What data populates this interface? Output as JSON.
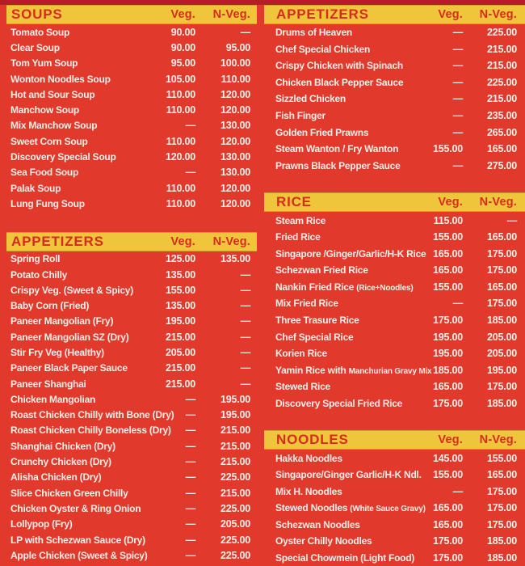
{
  "colors": {
    "background_red": "#e13a2c",
    "top_strip_red": "#b22023",
    "band_yellow": "#efc63b",
    "band_text_red": "#da2a20",
    "item_text": "#ffeee8"
  },
  "columns": [
    {
      "sections": [
        {
          "title": "SOUPS",
          "veg_label": "Veg.",
          "nveg_label": "N-Veg.",
          "items": [
            {
              "name": "Tomato Soup",
              "veg": "90.00",
              "nveg": "—"
            },
            {
              "name": "Clear Soup",
              "veg": "90.00",
              "nveg": "95.00"
            },
            {
              "name": "Tom Yum Soup",
              "veg": "95.00",
              "nveg": "100.00"
            },
            {
              "name": "Wonton Noodles Soup",
              "veg": "105.00",
              "nveg": "110.00"
            },
            {
              "name": "Hot and Sour Soup",
              "veg": "110.00",
              "nveg": "120.00"
            },
            {
              "name": "Manchow Soup",
              "veg": "110.00",
              "nveg": "120.00"
            },
            {
              "name": "Mix Manchow Soup",
              "veg": "—",
              "nveg": "130.00"
            },
            {
              "name": "Sweet Corn Soup",
              "veg": "110.00",
              "nveg": "120.00"
            },
            {
              "name": "Discovery Special Soup",
              "veg": "120.00",
              "nveg": "130.00"
            },
            {
              "name": "Sea Food Soup",
              "veg": "—",
              "nveg": "130.00"
            },
            {
              "name": "Palak Soup",
              "veg": "110.00",
              "nveg": "120.00"
            },
            {
              "name": "Lung Fung Soup",
              "veg": "110.00",
              "nveg": "120.00"
            }
          ]
        },
        {
          "title": "APPETIZERS",
          "veg_label": "Veg.",
          "nveg_label": "N-Veg.",
          "items": [
            {
              "name": "Spring Roll",
              "veg": "125.00",
              "nveg": "135.00"
            },
            {
              "name": "Potato Chilly",
              "veg": "135.00",
              "nveg": "—"
            },
            {
              "name": "Crispy Veg. (Sweet & Spicy)",
              "veg": "155.00",
              "nveg": "—"
            },
            {
              "name": "Baby Corn (Fried)",
              "veg": "135.00",
              "nveg": "—"
            },
            {
              "name": "Paneer Mangolian (Fry)",
              "veg": "195.00",
              "nveg": "—"
            },
            {
              "name": "Paneer Mangolian SZ (Dry)",
              "veg": "215.00",
              "nveg": "—"
            },
            {
              "name": "Stir Fry Veg (Healthy)",
              "veg": "205.00",
              "nveg": "—"
            },
            {
              "name": "Paneer Black Paper Sauce",
              "veg": "215.00",
              "nveg": "—"
            },
            {
              "name": "Paneer Shanghai",
              "veg": "215.00",
              "nveg": "—"
            },
            {
              "name": "Chicken Mangolian",
              "veg": "—",
              "nveg": "195.00"
            },
            {
              "name": "Roast Chicken Chilly with Bone (Dry)",
              "veg": "—",
              "nveg": "195.00"
            },
            {
              "name": "Roast Chicken Chilly Boneless (Dry)",
              "veg": "—",
              "nveg": "215.00"
            },
            {
              "name": "Shanghai Chicken (Dry)",
              "veg": "—",
              "nveg": "215.00"
            },
            {
              "name": "Crunchy Chicken (Dry)",
              "veg": "—",
              "nveg": "215.00"
            },
            {
              "name": "Alisha Chicken (Dry)",
              "veg": "—",
              "nveg": "225.00"
            },
            {
              "name": "Slice Chicken Green Chilly",
              "veg": "—",
              "nveg": "215.00"
            },
            {
              "name": "Chicken Oyster & Ring Onion",
              "veg": "—",
              "nveg": "225.00"
            },
            {
              "name": "Lollypop (Fry)",
              "veg": "—",
              "nveg": "205.00"
            },
            {
              "name": "LP with Schezwan Sauce (Dry)",
              "veg": "—",
              "nveg": "225.00"
            },
            {
              "name": "Apple Chicken (Sweet & Spicy)",
              "veg": "—",
              "nveg": "225.00"
            }
          ]
        }
      ]
    },
    {
      "sections": [
        {
          "title": "APPETIZERS",
          "veg_label": "Veg.",
          "nveg_label": "N-Veg.",
          "items": [
            {
              "name": "Drums of Heaven",
              "veg": "—",
              "nveg": "225.00"
            },
            {
              "name": "Chef Special Chicken",
              "veg": "—",
              "nveg": "215.00"
            },
            {
              "name": "Crispy Chicken with Spinach",
              "veg": "—",
              "nveg": "215.00"
            },
            {
              "name": "Chicken Black Pepper Sauce",
              "veg": "—",
              "nveg": "225.00"
            },
            {
              "name": "Sizzled Chicken",
              "veg": "—",
              "nveg": "215.00"
            },
            {
              "name": "Fish Finger",
              "veg": "—",
              "nveg": "235.00"
            },
            {
              "name": "Golden Fried Prawns",
              "veg": "—",
              "nveg": "265.00"
            },
            {
              "name": "Steam Wanton / Fry Wanton",
              "veg": "155.00",
              "nveg": "165.00"
            },
            {
              "name": "Prawns Black Pepper Sauce",
              "veg": "—",
              "nveg": "275.00"
            }
          ]
        },
        {
          "title": "RICE",
          "veg_label": "Veg.",
          "nveg_label": "N-Veg.",
          "items": [
            {
              "name": "Steam Rice",
              "veg": "115.00",
              "nveg": "—"
            },
            {
              "name": "Fried Rice",
              "veg": "155.00",
              "nveg": "165.00"
            },
            {
              "name": "Singapore /Ginger/Garlic/H-K Rice",
              "veg": "165.00",
              "nveg": "175.00"
            },
            {
              "name": "Schezwan Fried Rice",
              "veg": "165.00",
              "nveg": "175.00"
            },
            {
              "name": "Nankin Fried Rice",
              "name_small": "(Rice+Noodles)",
              "veg": "155.00",
              "nveg": "165.00"
            },
            {
              "name": "Mix Fried Rice",
              "veg": "—",
              "nveg": "175.00"
            },
            {
              "name": "Three Trasure Rice",
              "veg": "175.00",
              "nveg": "185.00"
            },
            {
              "name": "Chef Special Rice",
              "veg": "195.00",
              "nveg": "205.00"
            },
            {
              "name": "Korien Rice",
              "veg": "195.00",
              "nveg": "205.00"
            },
            {
              "name": "Yamin Rice with",
              "name_small": "Manchurian Gravy Mix",
              "veg": "185.00",
              "nveg": "195.00"
            },
            {
              "name": "Stewed Rice",
              "veg": "165.00",
              "nveg": "175.00"
            },
            {
              "name": "Discovery Special Fried Rice",
              "veg": "175.00",
              "nveg": "185.00"
            }
          ]
        },
        {
          "title": "NOODLES",
          "veg_label": "Veg.",
          "nveg_label": "N-Veg.",
          "items": [
            {
              "name": "Hakka Noodles",
              "veg": "145.00",
              "nveg": "155.00"
            },
            {
              "name": "Singapore/Ginger Garlic/H-K Ndl.",
              "veg": "155.00",
              "nveg": "165.00"
            },
            {
              "name": "Mix H. Noodles",
              "veg": "—",
              "nveg": "175.00"
            },
            {
              "name": "Stewed Noodles",
              "name_small": "(White Sauce Gravy)",
              "veg": "165.00",
              "nveg": "175.00"
            },
            {
              "name": "Schezwan Noodles",
              "veg": "165.00",
              "nveg": "175.00"
            },
            {
              "name": "Oyster Chilly Noodles",
              "veg": "175.00",
              "nveg": "185.00"
            },
            {
              "name": "Special Chowmein (Light Food)",
              "veg": "175.00",
              "nveg": "185.00"
            }
          ]
        }
      ]
    }
  ]
}
